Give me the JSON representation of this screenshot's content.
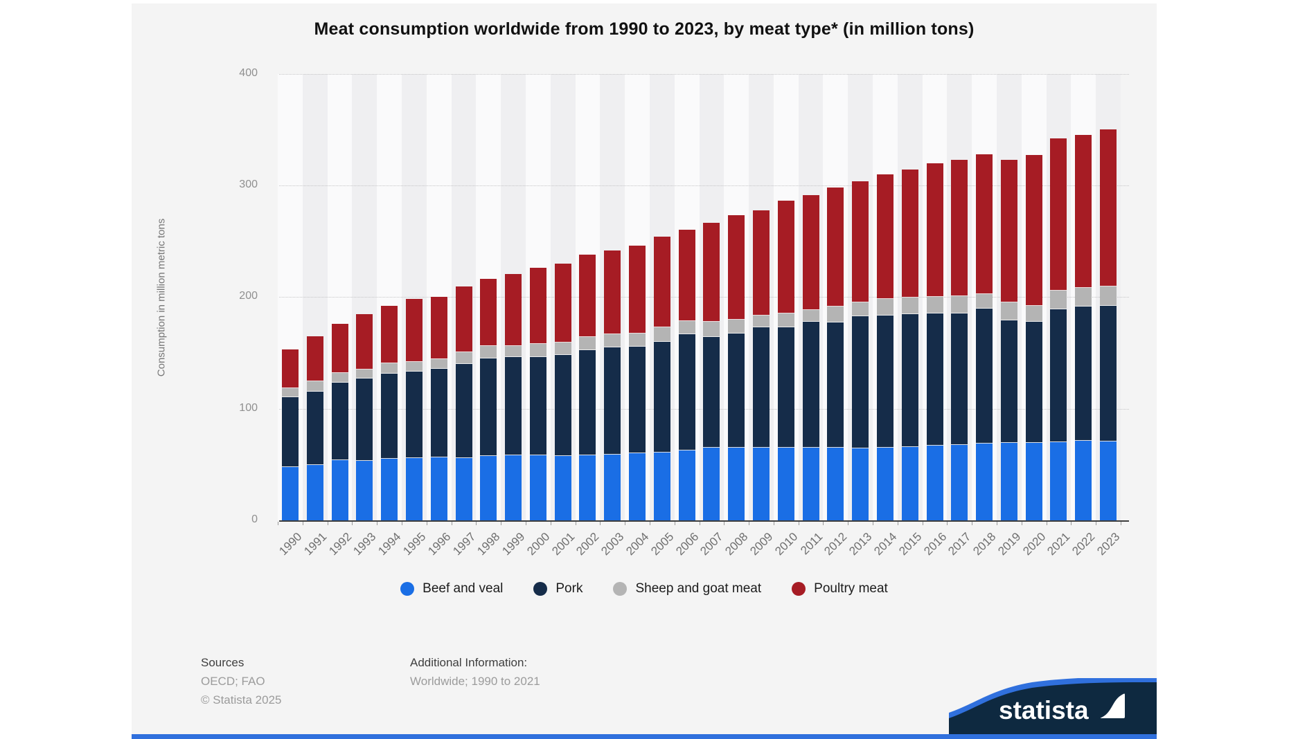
{
  "title": "Meat consumption worldwide from 1990 to 2023, by meat type* (in million tons)",
  "y_axis": {
    "title": "Consumption in million metric tons",
    "ticks": [
      0,
      100,
      200,
      300,
      400
    ]
  },
  "chart_data": {
    "type": "bar",
    "stacked": true,
    "title": "Meat consumption worldwide from 1990 to 2023, by meat type* (in million tons)",
    "xlabel": "",
    "ylabel": "Consumption in million metric tons",
    "ylim": [
      0,
      400
    ],
    "grid": "horizontal-dotted",
    "legend_position": "bottom",
    "categories": [
      "1990",
      "1991",
      "1992",
      "1993",
      "1994",
      "1995",
      "1996",
      "1997",
      "1998",
      "1999",
      "2000",
      "2001",
      "2002",
      "2003",
      "2004",
      "2005",
      "2006",
      "2007",
      "2008",
      "2009",
      "2010",
      "2011",
      "2012",
      "2013",
      "2014",
      "2015",
      "2016",
      "2017",
      "2018",
      "2019",
      "2020",
      "2021",
      "2022",
      "2023"
    ],
    "series": [
      {
        "name": "Beef and veal",
        "color": "#1a6ee5",
        "values": [
          47.7,
          49.3,
          53.9,
          53.3,
          55.0,
          56.0,
          56.6,
          56.0,
          57.5,
          58.1,
          58.1,
          57.5,
          58.1,
          58.7,
          60.1,
          60.8,
          62.8,
          65.0,
          64.9,
          64.9,
          65.3,
          65.3,
          64.9,
          64.3,
          64.9,
          65.7,
          67.0,
          67.8,
          69.0,
          69.4,
          69.4,
          69.9,
          71.1,
          70.5
        ]
      },
      {
        "name": "Pork",
        "color": "#152c49",
        "values": [
          62.7,
          66.2,
          69.6,
          73.7,
          76.4,
          77.5,
          79.0,
          84.2,
          87.5,
          87.9,
          88.4,
          90.5,
          94.1,
          96.5,
          95.7,
          99.2,
          104.1,
          99.5,
          102.7,
          107.9,
          107.9,
          112.6,
          112.4,
          118.8,
          118.6,
          119.0,
          118.2,
          117.8,
          120.7,
          109.6,
          108.5,
          119.0,
          120.7,
          121.9
        ]
      },
      {
        "name": "Sheep and goat meat",
        "color": "#b4b4b4",
        "values": [
          8.2,
          9.0,
          8.5,
          8.0,
          9.3,
          8.3,
          8.7,
          10.5,
          11.0,
          10.5,
          11.7,
          11.3,
          12.3,
          11.7,
          11.8,
          13.2,
          11.6,
          13.4,
          12.4,
          10.7,
          12.4,
          10.4,
          14.1,
          12.4,
          15.1,
          14.9,
          14.9,
          15.1,
          13.0,
          16.1,
          14.5,
          16.8,
          16.5,
          17.0
        ]
      },
      {
        "name": "Poultry meat",
        "color": "#a61c24",
        "values": [
          33.8,
          39.9,
          43.6,
          49.3,
          51.0,
          56.1,
          55.0,
          58.4,
          59.9,
          63.6,
          67.3,
          70.3,
          72.7,
          74.1,
          77.9,
          80.2,
          81.5,
          87.9,
          93.0,
          93.4,
          100.2,
          102.3,
          106.0,
          107.5,
          110.6,
          114.1,
          118.8,
          121.9,
          124.3,
          126.9,
          134.3,
          136.1,
          136.4,
          140.1
        ]
      }
    ]
  },
  "footer": {
    "sources_label": "Sources",
    "sources_value": "OECD; FAO",
    "copyright": "© Statista 2025",
    "additional_label": "Additional Information:",
    "additional_value": "Worldwide; 1990 to 2021"
  },
  "logo": {
    "brand": "statista"
  },
  "colors": {
    "card_background": "#f4f4f4",
    "stripe_light": "#fafafb",
    "stripe_dark": "#efeff1",
    "bottom_bar": "#3070dd",
    "logo_navy": "#0e2940",
    "logo_blue": "#3070dd"
  }
}
